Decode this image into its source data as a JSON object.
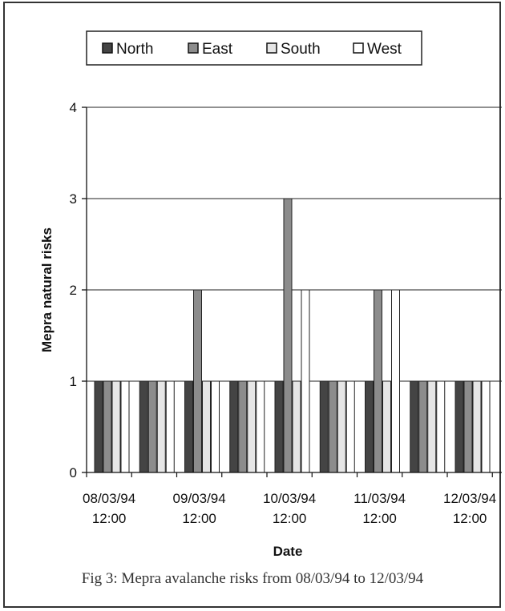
{
  "caption": "Fig 3: Mepra avalanche  risks from 08/03/94 to 12/03/94",
  "chart_data": {
    "type": "bar",
    "xlabel": "Date",
    "ylabel": "Mepra natural risks",
    "ylim": [
      0,
      4
    ],
    "yticks": [
      0,
      1,
      2,
      3,
      4
    ],
    "grid": true,
    "legend_position": "top",
    "categories": [
      "08/03/94",
      "08/03/94",
      "09/03/94",
      "09/03/94",
      "10/03/94",
      "10/03/94",
      "11/03/94",
      "11/03/94",
      "12/03/94"
    ],
    "tick_labels": [
      [
        "08/03/94",
        "12:00"
      ],
      [
        "09/03/94",
        "12:00"
      ],
      [
        "10/03/94",
        "12:00"
      ],
      [
        "11/03/94",
        "12:00"
      ],
      [
        "12/03/94",
        "12:00"
      ]
    ],
    "series": [
      {
        "name": "North",
        "color": "#444444",
        "values": [
          1,
          1,
          1,
          1,
          1,
          1,
          1,
          1,
          1
        ]
      },
      {
        "name": "East",
        "color": "#8c8c8c",
        "values": [
          1,
          1,
          2,
          1,
          3,
          1,
          2,
          1,
          1
        ]
      },
      {
        "name": "South",
        "color": "#e6e6e6",
        "values": [
          1,
          1,
          1,
          1,
          1,
          1,
          1,
          1,
          1
        ]
      },
      {
        "name": "West",
        "color": "#ffffff",
        "values": [
          1,
          1,
          1,
          1,
          2,
          1,
          2,
          1,
          1
        ]
      }
    ]
  }
}
